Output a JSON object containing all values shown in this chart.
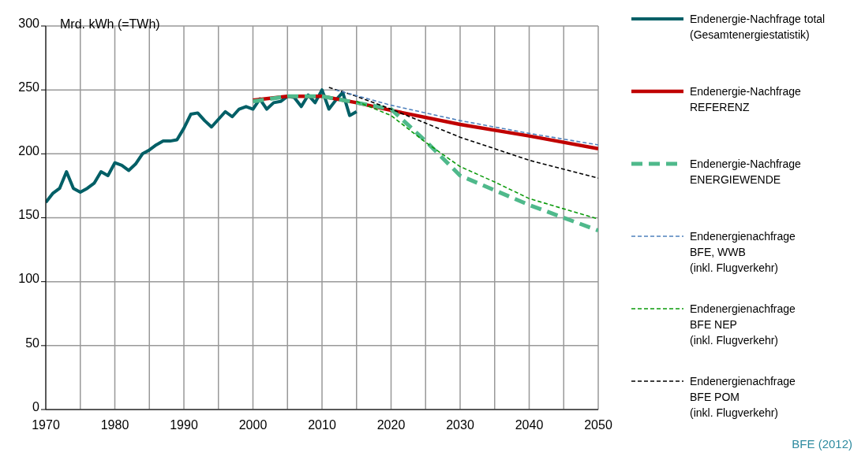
{
  "chart_data": {
    "type": "line",
    "ylabel": "Mrd. kWh (=TWh)",
    "xlim": [
      1970,
      2050
    ],
    "ylim": [
      0,
      300
    ],
    "xticks": [
      1970,
      {
        "value": 1975,
        "label": null
      },
      1980,
      {
        "value": 1985,
        "label": null
      },
      1990,
      {
        "value": 1995,
        "label": null
      },
      2000,
      {
        "value": 2005,
        "label": null
      },
      2010,
      {
        "value": 2015,
        "label": null
      },
      2020,
      {
        "value": 2025,
        "label": null
      },
      2030,
      {
        "value": 2035,
        "label": null
      },
      2040,
      {
        "value": 2045,
        "label": null
      },
      2050
    ],
    "yticks": [
      0,
      50,
      100,
      150,
      200,
      250,
      300
    ],
    "grid": true,
    "legend": "right",
    "marker": "none",
    "annotations": [
      "BFE (2012)"
    ],
    "series": [
      {
        "name": "Endenergie-Nachfrage total\n(Gesamtenergiestatistik)",
        "color": "#005f66",
        "line_style": "solid",
        "x": [
          1970,
          1971,
          1972,
          1973,
          1974,
          1975,
          1976,
          1977,
          1978,
          1979,
          1980,
          1981,
          1982,
          1983,
          1984,
          1985,
          1986,
          1987,
          1988,
          1989,
          1990,
          1991,
          1992,
          1993,
          1994,
          1995,
          1996,
          1997,
          1998,
          1999,
          2000,
          2001,
          2002,
          2003,
          2004,
          2005,
          2006,
          2007,
          2008,
          2009,
          2010,
          2011,
          2012,
          2013,
          2014,
          2015
        ],
        "values": [
          162,
          169,
          173,
          186,
          173,
          170,
          173,
          177,
          186,
          183,
          193,
          191,
          187,
          192,
          200,
          203,
          207,
          210,
          210,
          211,
          220,
          231,
          232,
          226,
          221,
          227,
          233,
          229,
          235,
          237,
          235,
          243,
          235,
          240,
          241,
          245,
          244,
          237,
          246,
          240,
          250,
          235,
          242,
          248,
          230,
          233
        ]
      },
      {
        "name": "Endenergie-Nachfrage\nREFERENZ",
        "color": "#c00000",
        "line_style": "solid",
        "x": [
          2000,
          2005,
          2010,
          2015,
          2020,
          2030,
          2040,
          2050
        ],
        "values": [
          242,
          245,
          245,
          240,
          234,
          223,
          214,
          204
        ]
      },
      {
        "name": "Endenergie-Nachfrage\nENERGIEWENDE",
        "color": "#4fb98b",
        "line_style": "dashed",
        "x": [
          2000,
          2005,
          2010,
          2015,
          2020,
          2025,
          2030,
          2040,
          2050
        ],
        "values": [
          241,
          245,
          245,
          240,
          235,
          210,
          183,
          160,
          140
        ]
      },
      {
        "name": "Endenergienachfrage\nBFE, WWB\n(inkl. Flugverkehr)",
        "color": "#4f81bd",
        "line_style": "dashed",
        "x": [
          2012,
          2020,
          2030,
          2040,
          2050
        ],
        "values": [
          250,
          238,
          226,
          216,
          207
        ]
      },
      {
        "name": "Endenergienachfrage\nBFE NEP\n(inkl. Flugverkehr)",
        "color": "#0a9a0a",
        "line_style": "dashed",
        "x": [
          2015,
          2020,
          2025,
          2030,
          2035,
          2040,
          2050
        ],
        "values": [
          241,
          230,
          209,
          190,
          178,
          165,
          149
        ]
      },
      {
        "name": "Endenergienachfrage\nBFE POM\n(inkl. Flugverkehr)",
        "color": "#000000",
        "line_style": "dashed",
        "x": [
          2011,
          2015,
          2020,
          2030,
          2040,
          2050
        ],
        "values": [
          252,
          245,
          235,
          213,
          195,
          181
        ]
      }
    ]
  }
}
